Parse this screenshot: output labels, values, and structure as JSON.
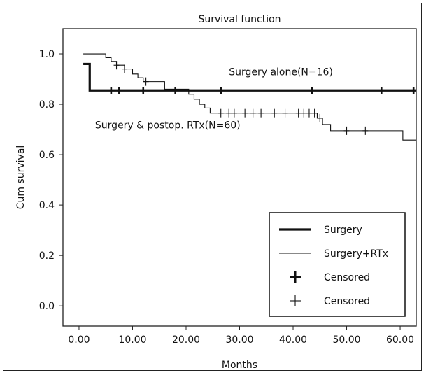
{
  "chart_data": {
    "type": "line",
    "title": "Survival function",
    "xlabel": "Months",
    "ylabel": "Cum survival",
    "xlim": [
      -3,
      63
    ],
    "ylim": [
      -0.08,
      1.1
    ],
    "xticks": [
      0,
      10,
      20,
      30,
      40,
      50,
      60
    ],
    "xtick_labels": [
      "0.00",
      "10.00",
      "20.00",
      "30.00",
      "40.00",
      "50.00",
      "60.00"
    ],
    "yticks": [
      0,
      0.2,
      0.4,
      0.6,
      0.8,
      1.0
    ],
    "ytick_labels": [
      "0.0",
      "0.2",
      "0.4",
      "0.6",
      "0.8",
      "1.0"
    ],
    "grid": false,
    "series": [
      {
        "name": "Surgery",
        "style": "thick-step",
        "color": "#111111",
        "steps": [
          [
            0.8,
            0.96
          ],
          [
            2.0,
            0.855
          ],
          [
            63,
            0.855
          ]
        ],
        "censored": [
          6,
          7.5,
          12,
          18,
          26.5,
          43.5,
          56.5,
          62.5
        ]
      },
      {
        "name": "Surgery+RTx",
        "style": "thin-step",
        "color": "#111111",
        "steps": [
          [
            0.8,
            1.0
          ],
          [
            5,
            0.985
          ],
          [
            6,
            0.97
          ],
          [
            7,
            0.955
          ],
          [
            8.5,
            0.94
          ],
          [
            10,
            0.92
          ],
          [
            11,
            0.905
          ],
          [
            12,
            0.89
          ],
          [
            16,
            0.86
          ],
          [
            20.5,
            0.84
          ],
          [
            21.5,
            0.82
          ],
          [
            22.5,
            0.8
          ],
          [
            23.5,
            0.785
          ],
          [
            24.5,
            0.765
          ],
          [
            44.5,
            0.745
          ],
          [
            45.5,
            0.72
          ],
          [
            47,
            0.695
          ],
          [
            60.5,
            0.658
          ],
          [
            63,
            0.658
          ]
        ],
        "censored": [
          7,
          8.5,
          12.5,
          26.5,
          28,
          29,
          31,
          32.5,
          34,
          36.5,
          38.5,
          41,
          42,
          43,
          44,
          45,
          50,
          53.5
        ]
      }
    ],
    "annotations": [
      {
        "text": "Surgery alone(N=16)",
        "x": 28,
        "y": 0.915
      },
      {
        "text": "Surgery & postop. RTx(N=60)",
        "x": 3,
        "y": 0.705
      }
    ],
    "legend": {
      "position": "bottom-right",
      "entries": [
        {
          "label": "Surgery",
          "symbol": "thick-line"
        },
        {
          "label": "Surgery+RTx",
          "symbol": "thin-line"
        },
        {
          "label": "Censored",
          "symbol": "thick-plus"
        },
        {
          "label": "Censored",
          "symbol": "thin-plus"
        }
      ]
    }
  }
}
